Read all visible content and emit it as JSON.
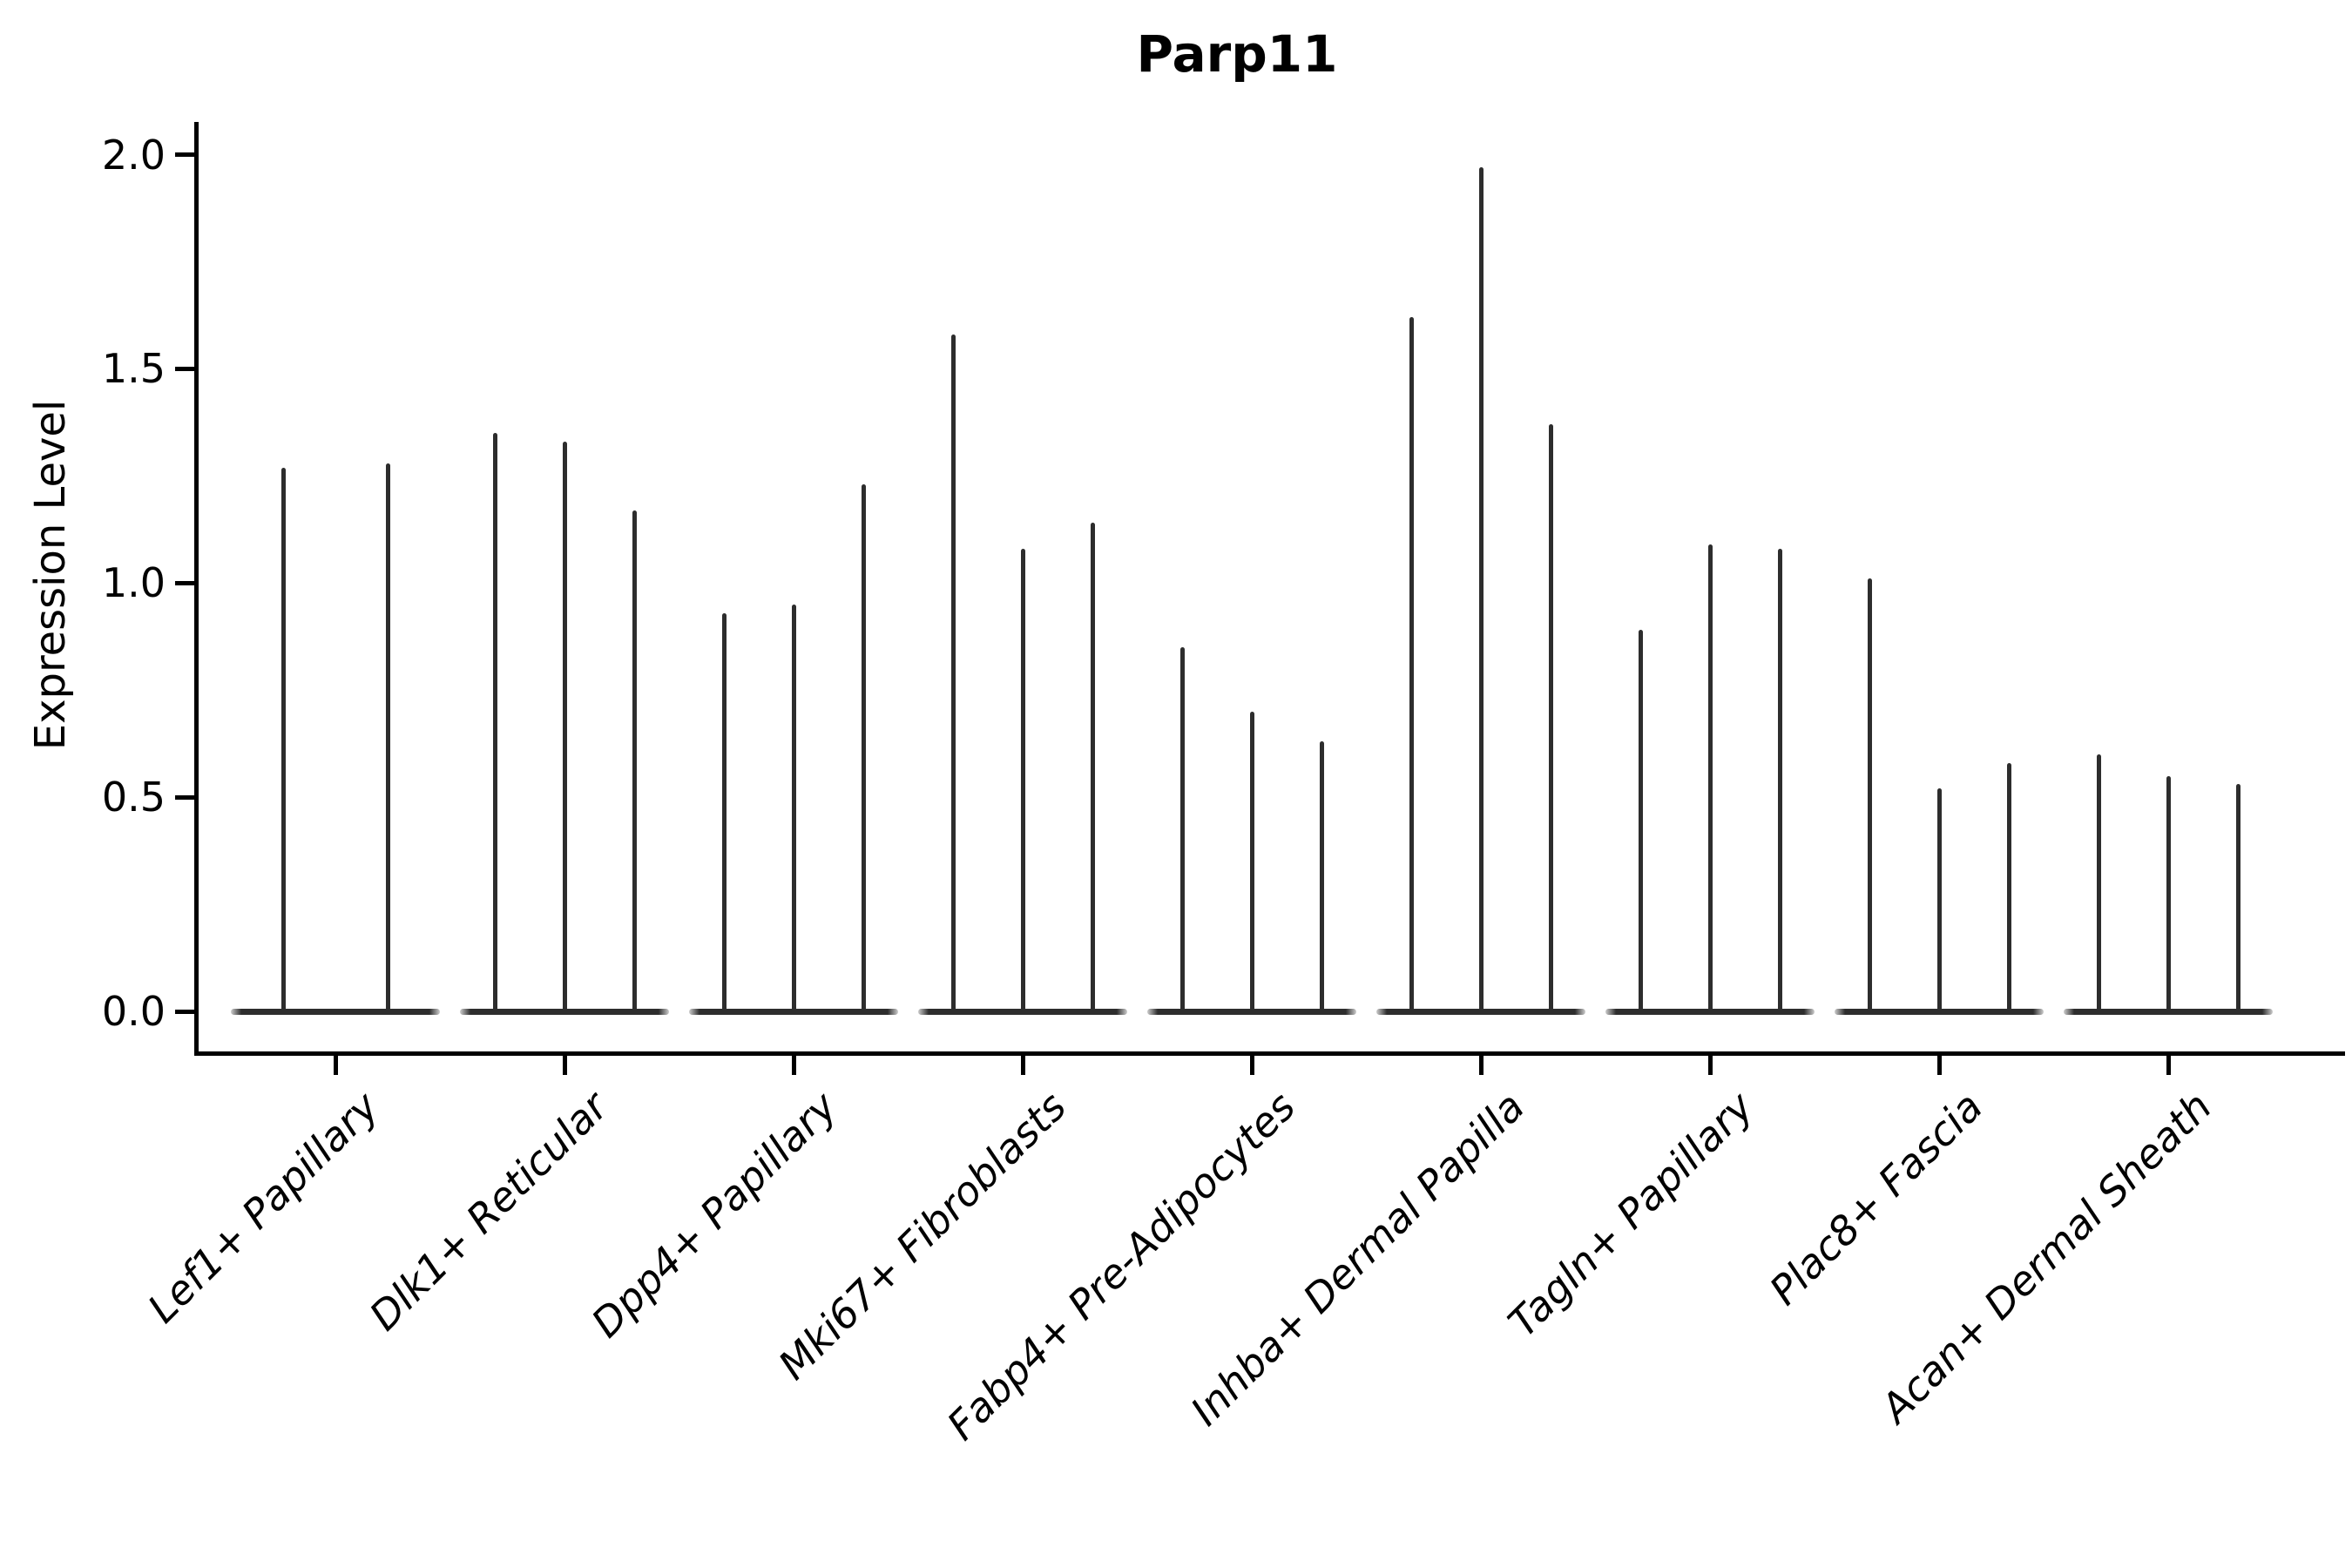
{
  "chart_data": {
    "type": "violin",
    "title": "Parp11",
    "ylabel": "Expression Level",
    "xlabel": "",
    "ylim": [
      0.0,
      2.08
    ],
    "grid": false,
    "legend": false,
    "yticks": [
      {
        "label": "0.0",
        "value": 0.0
      },
      {
        "label": "0.5",
        "value": 0.5
      },
      {
        "label": "1.0",
        "value": 1.0
      },
      {
        "label": "1.5",
        "value": 1.5
      },
      {
        "label": "2.0",
        "value": 2.0
      }
    ],
    "categories": [
      "Lef1+ Papillary",
      "Dlk1+ Reticular",
      "Dpp4+ Papillary",
      "Mki67+ Fibroblasts",
      "Fabp4+ Pre-Adipocytes",
      "Inhba+ Dermal Papilla",
      "Tagln+ Papillary",
      "Plac8+ Fascia",
      "Acan+ Dermal Sheath"
    ],
    "groups": [
      {
        "label": "Lef1+ Papillary",
        "violin_max_values": [
          1.27,
          1.28
        ]
      },
      {
        "label": "Dlk1+ Reticular",
        "violin_max_values": [
          1.35,
          1.33,
          1.17
        ]
      },
      {
        "label": "Dpp4+ Papillary",
        "violin_max_values": [
          0.93,
          0.95,
          1.23
        ]
      },
      {
        "label": "Mki67+ Fibroblasts",
        "violin_max_values": [
          1.58,
          1.08,
          1.14
        ]
      },
      {
        "label": "Fabp4+ Pre-Adipocytes",
        "violin_max_values": [
          0.85,
          0.7,
          0.63
        ]
      },
      {
        "label": "Inhba+ Dermal Papilla",
        "violin_max_values": [
          1.62,
          1.97,
          1.37
        ]
      },
      {
        "label": "Tagln+ Papillary",
        "violin_max_values": [
          0.89,
          1.09,
          1.08
        ]
      },
      {
        "label": "Plac8+ Fascia",
        "violin_max_values": [
          1.01,
          0.52,
          0.58
        ]
      },
      {
        "label": "Acan+ Dermal Sheath",
        "violin_max_values": [
          0.6,
          0.55,
          0.53
        ]
      }
    ],
    "violin_color": "#2d2d2d",
    "note_shape": "violins collapse to a flat base at 0 with a thin spike to each max"
  }
}
